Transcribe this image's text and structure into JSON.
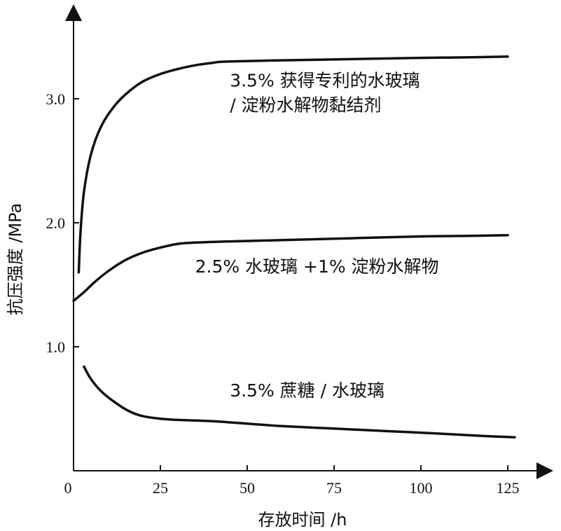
{
  "chart_data": {
    "type": "line",
    "title": "",
    "xlabel": "存放时间 /h",
    "ylabel": "抗压强度 /MPa",
    "xlim": [
      0,
      135
    ],
    "ylim": [
      0,
      3.6
    ],
    "x_ticks": [
      0,
      25,
      50,
      75,
      100,
      125
    ],
    "x_tick_labels": [
      "0",
      "25",
      "50",
      "75",
      "100",
      "125"
    ],
    "y_ticks": [
      1.0,
      2.0,
      3.0
    ],
    "y_tick_labels": [
      "1.0",
      "2.0",
      "3.0"
    ],
    "grid": false,
    "legend": "none",
    "series": [
      {
        "name": "3.5% 获得专利的水玻璃 / 淀粉水解物黏结剂",
        "x": [
          1.5,
          2,
          3,
          5,
          8,
          12,
          16,
          20,
          25,
          30,
          35,
          40,
          44,
          60,
          80,
          100,
          115,
          125
        ],
        "y": [
          1.6,
          1.92,
          2.25,
          2.55,
          2.78,
          2.95,
          3.06,
          3.14,
          3.2,
          3.24,
          3.27,
          3.29,
          3.3,
          3.31,
          3.32,
          3.33,
          3.335,
          3.34
        ]
      },
      {
        "name": "2.5% 水玻璃 +1% 淀粉水解物",
        "x": [
          0,
          3,
          6,
          10,
          15,
          20,
          25,
          30,
          35,
          45,
          60,
          80,
          100,
          115,
          125
        ],
        "y": [
          1.37,
          1.44,
          1.52,
          1.61,
          1.7,
          1.76,
          1.8,
          1.83,
          1.84,
          1.85,
          1.86,
          1.875,
          1.89,
          1.895,
          1.9
        ]
      },
      {
        "name": "3.5% 蔗糖 / 水玻璃",
        "x": [
          3,
          5,
          8,
          12,
          16,
          20,
          25,
          30,
          40,
          50,
          60,
          75,
          90,
          105,
          118,
          127
        ],
        "y": [
          0.84,
          0.74,
          0.64,
          0.55,
          0.48,
          0.44,
          0.42,
          0.41,
          0.4,
          0.38,
          0.36,
          0.34,
          0.32,
          0.3,
          0.28,
          0.27
        ]
      }
    ],
    "annotations": [
      {
        "text": "3.5% 获得专利的水玻璃",
        "x": 45,
        "y": 3.1
      },
      {
        "text": "/ 淀粉水解物黏结剂",
        "x": 45,
        "y": 2.9
      },
      {
        "text": "2.5% 水玻璃 +1% 淀粉水解物",
        "x": 35,
        "y": 1.6
      },
      {
        "text": "3.5% 蔗糖 / 水玻璃",
        "x": 45,
        "y": 0.6
      }
    ]
  }
}
